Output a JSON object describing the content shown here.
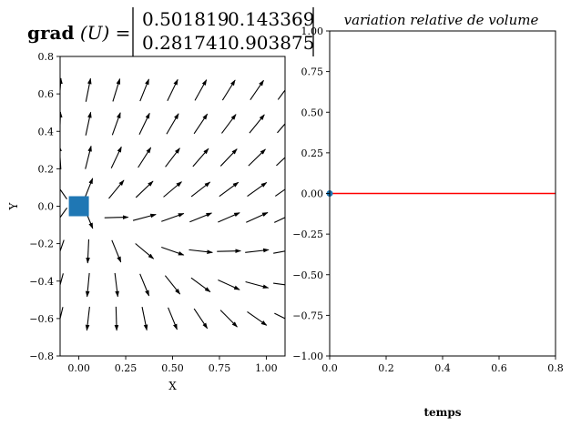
{
  "chart_data": [
    {
      "type": "quiver",
      "title_prefix_bold": "grad",
      "title_prefix_rest": "(U) =",
      "matrix": [
        [
          "0.501819",
          "0.143369"
        ],
        [
          "0.281741",
          "0.903875"
        ]
      ],
      "xlabel": "X",
      "ylabel": "Y",
      "xlim": [
        -0.1,
        1.1
      ],
      "ylim": [
        -0.8,
        0.8
      ],
      "xticks": [
        "0.00",
        "0.25",
        "0.50",
        "0.75",
        "1.00"
      ],
      "xtick_values": [
        0,
        0.25,
        0.5,
        0.75,
        1.0
      ],
      "yticks": [
        "−0.8",
        "−0.6",
        "−0.4",
        "−0.2",
        "0.0",
        "0.2",
        "0.4",
        "0.6",
        "0.8"
      ],
      "ytick_values": [
        -0.8,
        -0.6,
        -0.4,
        -0.2,
        0,
        0.2,
        0.4,
        0.6,
        0.8
      ],
      "grid": false,
      "quiver_x": [
        -0.1,
        0.05,
        0.2,
        0.35,
        0.5,
        0.65,
        0.8,
        0.95,
        1.1
      ],
      "quiver_y": [
        -0.6,
        -0.42,
        -0.24,
        -0.06,
        0.09,
        0.26,
        0.44,
        0.62
      ],
      "square": {
        "x": 0,
        "y": 0,
        "color": "#1f77b4"
      }
    },
    {
      "type": "line",
      "title": "variation relative de volume",
      "xlabel": "temps",
      "ylabel": "",
      "xlim": [
        0,
        0.8
      ],
      "ylim": [
        -1,
        1
      ],
      "xticks": [
        "0.0",
        "0.2",
        "0.4",
        "0.6",
        "0.8"
      ],
      "xtick_values": [
        0,
        0.2,
        0.4,
        0.6,
        0.8
      ],
      "yticks": [
        "−1.00",
        "−0.75",
        "−0.50",
        "−0.25",
        "0.00",
        "0.25",
        "0.50",
        "0.75",
        "1.00"
      ],
      "ytick_values": [
        -1,
        -0.75,
        -0.5,
        -0.25,
        0,
        0.25,
        0.5,
        0.75,
        1
      ],
      "grid": false,
      "series": [
        {
          "x": [
            0,
            0.8
          ],
          "y": [
            0,
            0
          ],
          "color": "#ff0000"
        }
      ],
      "point": {
        "x": 0,
        "y": 0,
        "color": "#1f77b4"
      }
    }
  ]
}
